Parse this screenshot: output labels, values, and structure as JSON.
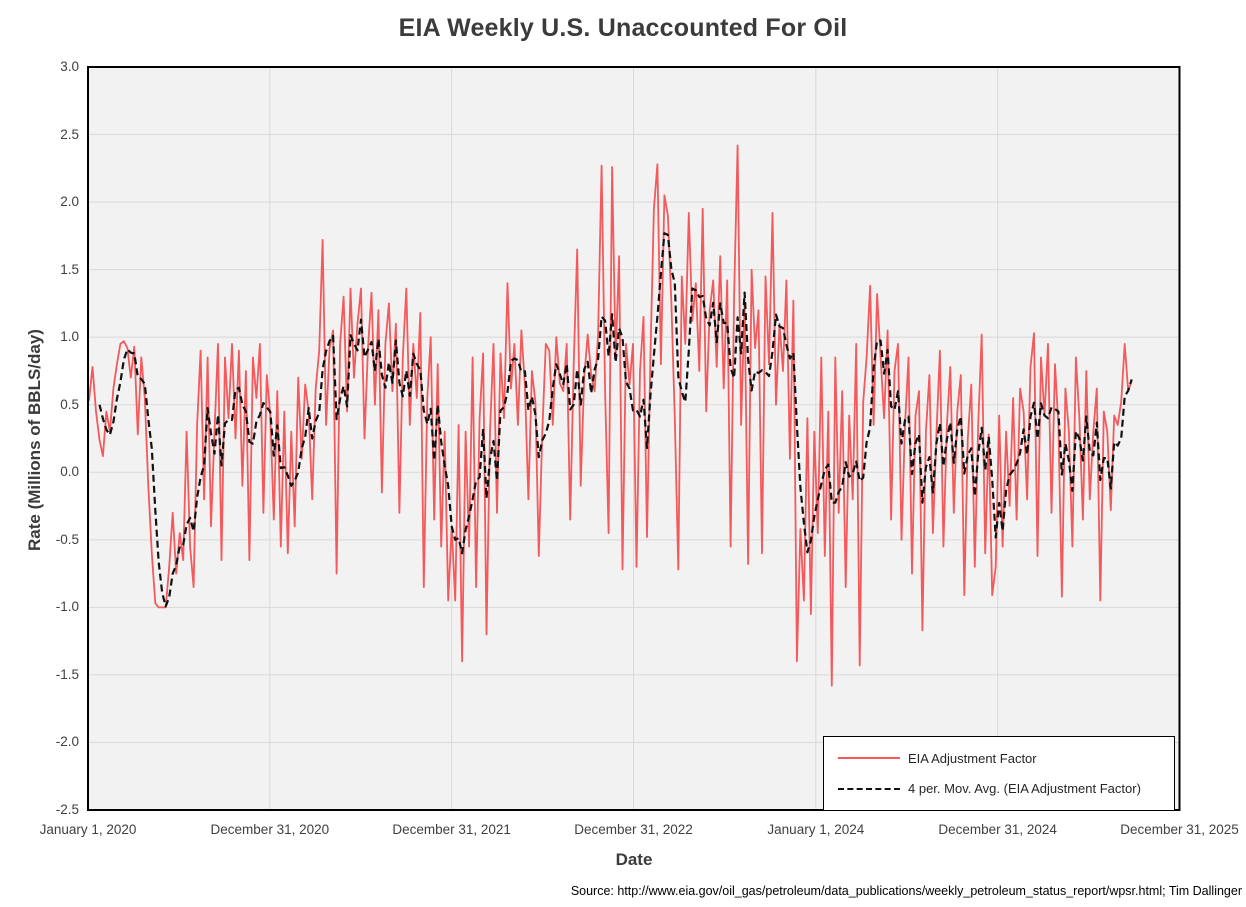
{
  "title": "EIA Weekly U.S. Unaccounted For Oil",
  "source": "Source: http://www.eia.gov/oil_gas/petroleum/data_publications/weekly_petroleum_status_report/wpsr.html; Tim Dallinger",
  "colors": {
    "series_red": "#f4595b",
    "moving_avg": "#111111",
    "plot_bg": "#f2f2f2",
    "gridline": "#d9d9d9",
    "plot_border": "#000000",
    "text": "#404040"
  },
  "chart_data": {
    "type": "line",
    "title": "EIA Weekly U.S. Unaccounted For Oil",
    "xlabel": "Date",
    "ylabel": "Rate (Millions of BBLS/day)",
    "ylim": [
      -2.5,
      3.0
    ],
    "y_ticks": [
      "3.0",
      "2.5",
      "2.0",
      "1.5",
      "1.0",
      "0.5",
      "0.0",
      "-0.5",
      "-1.0",
      "-1.5",
      "-2.0",
      "-2.5"
    ],
    "y_tick_values": [
      3.0,
      2.5,
      2.0,
      1.5,
      1.0,
      0.5,
      0.0,
      -0.5,
      -1.0,
      -1.5,
      -2.0,
      -2.5
    ],
    "x_axis_range_days": [
      0,
      2191
    ],
    "x_ticks": [
      {
        "label": "January 1, 2020",
        "day": 0
      },
      {
        "label": "December 31, 2020",
        "day": 365
      },
      {
        "label": "December 31, 2021",
        "day": 730
      },
      {
        "label": "December 31, 2022",
        "day": 1095
      },
      {
        "label": "January 1, 2024",
        "day": 1461
      },
      {
        "label": "December 31, 2024",
        "day": 1826
      },
      {
        "label": "December 31, 2025",
        "day": 2191
      }
    ],
    "grid": true,
    "legend_position": "bottom-right",
    "series": [
      {
        "name": "EIA Adjustment Factor",
        "style": "solid",
        "color": "#f4595b",
        "x_start_day_offset": 2,
        "x_step_days": 7,
        "values": [
          0.53,
          0.78,
          0.45,
          0.24,
          0.12,
          0.45,
          0.3,
          0.62,
          0.8,
          0.95,
          0.97,
          0.92,
          0.7,
          0.93,
          0.28,
          0.85,
          0.55,
          -0.1,
          -0.6,
          -0.97,
          -1.0,
          -1.0,
          -1.0,
          -0.7,
          -0.3,
          -0.75,
          -0.45,
          -0.65,
          0.3,
          -0.55,
          -0.85,
          0.35,
          0.9,
          -0.2,
          0.85,
          -0.4,
          0.3,
          0.95,
          -0.65,
          0.85,
          0.4,
          0.95,
          0.25,
          0.9,
          -0.1,
          0.75,
          -0.65,
          0.85,
          0.55,
          0.95,
          -0.3,
          0.72,
          0.42,
          -0.35,
          0.6,
          -0.55,
          0.45,
          -0.6,
          0.3,
          -0.4,
          0.7,
          0.1,
          0.65,
          0.45,
          -0.2,
          0.62,
          0.9,
          1.72,
          0.35,
          0.92,
          1.05,
          -0.75,
          0.95,
          1.3,
          0.45,
          1.36,
          0.7,
          1.1,
          1.36,
          0.25,
          0.92,
          1.33,
          0.5,
          1.2,
          -0.15,
          0.95,
          1.25,
          0.6,
          1.1,
          -0.3,
          0.85,
          1.36,
          0.35,
          0.95,
          0.55,
          1.18,
          -0.85,
          0.55,
          1.0,
          -0.35,
          0.8,
          -0.55,
          0.3,
          -0.95,
          -0.4,
          -0.95,
          0.35,
          -1.4,
          0.3,
          -0.55,
          0.85,
          -0.85,
          0.4,
          0.88,
          -1.2,
          0.3,
          0.95,
          -0.3,
          0.88,
          0.4,
          1.4,
          0.62,
          0.95,
          0.35,
          1.05,
          0.64,
          -0.2,
          0.75,
          0.52,
          -0.62,
          0.3,
          0.95,
          0.9,
          0.35,
          1.0,
          0.66,
          0.6,
          0.95,
          -0.35,
          0.8,
          1.65,
          -0.1,
          0.7,
          1.02,
          0.72,
          0.6,
          1.02,
          2.27,
          0.6,
          -0.45,
          2.26,
          0.85,
          1.6,
          -0.72,
          0.95,
          0.65,
          0.95,
          -0.7,
          0.75,
          1.15,
          -0.48,
          0.85,
          1.95,
          2.28,
          0.8,
          2.05,
          1.9,
          1.25,
          0.4,
          -0.72,
          1.45,
          0.95,
          1.92,
          1.12,
          1.4,
          0.75,
          1.95,
          0.45,
          1.2,
          1.42,
          0.78,
          1.6,
          0.62,
          1.42,
          -0.55,
          1.3,
          2.42,
          0.35,
          1.25,
          -0.68,
          1.5,
          0.92,
          1.2,
          -0.6,
          1.45,
          0.8,
          1.92,
          0.5,
          1.1,
          0.75,
          1.42,
          0.1,
          1.27,
          -1.4,
          -0.42,
          -0.95,
          0.4,
          -1.05,
          0.3,
          -0.45,
          0.85,
          -0.62,
          0.45,
          -1.58,
          0.85,
          -0.3,
          0.6,
          -0.85,
          0.42,
          -0.2,
          0.95,
          -1.43,
          0.52,
          0.85,
          1.38,
          0.35,
          1.32,
          0.85,
          0.4,
          1.05,
          -0.35,
          0.75,
          0.95,
          -0.5,
          0.35,
          0.85,
          -0.75,
          0.42,
          0.6,
          -1.17,
          0.3,
          0.72,
          -0.45,
          0.28,
          0.9,
          -0.55,
          0.35,
          0.78,
          -0.3,
          0.45,
          0.72,
          -0.91,
          0.25,
          0.65,
          -0.7,
          0.35,
          1.02,
          -0.6,
          0.28,
          -0.91,
          -0.7,
          0.42,
          -0.55,
          0.3,
          -0.25,
          0.55,
          -0.35,
          0.62,
          0.45,
          -0.2,
          0.78,
          1.03,
          -0.62,
          0.85,
          0.42,
          0.95,
          -0.3,
          0.8,
          0.35,
          -0.92,
          0.62,
          0.3,
          -0.55,
          0.85,
          0.4,
          -0.35,
          0.75,
          -0.2,
          0.3,
          0.62,
          -0.95,
          0.45,
          0.3,
          -0.28,
          0.42,
          0.35,
          0.52,
          0.95,
          0.6,
          0.68
        ]
      },
      {
        "name": "4 per. Mov. Avg. (EIA Adjustment Factor)",
        "style": "dashed",
        "color": "#111111",
        "derived": "trailing 4-period moving average of the EIA Adjustment Factor series"
      }
    ]
  }
}
